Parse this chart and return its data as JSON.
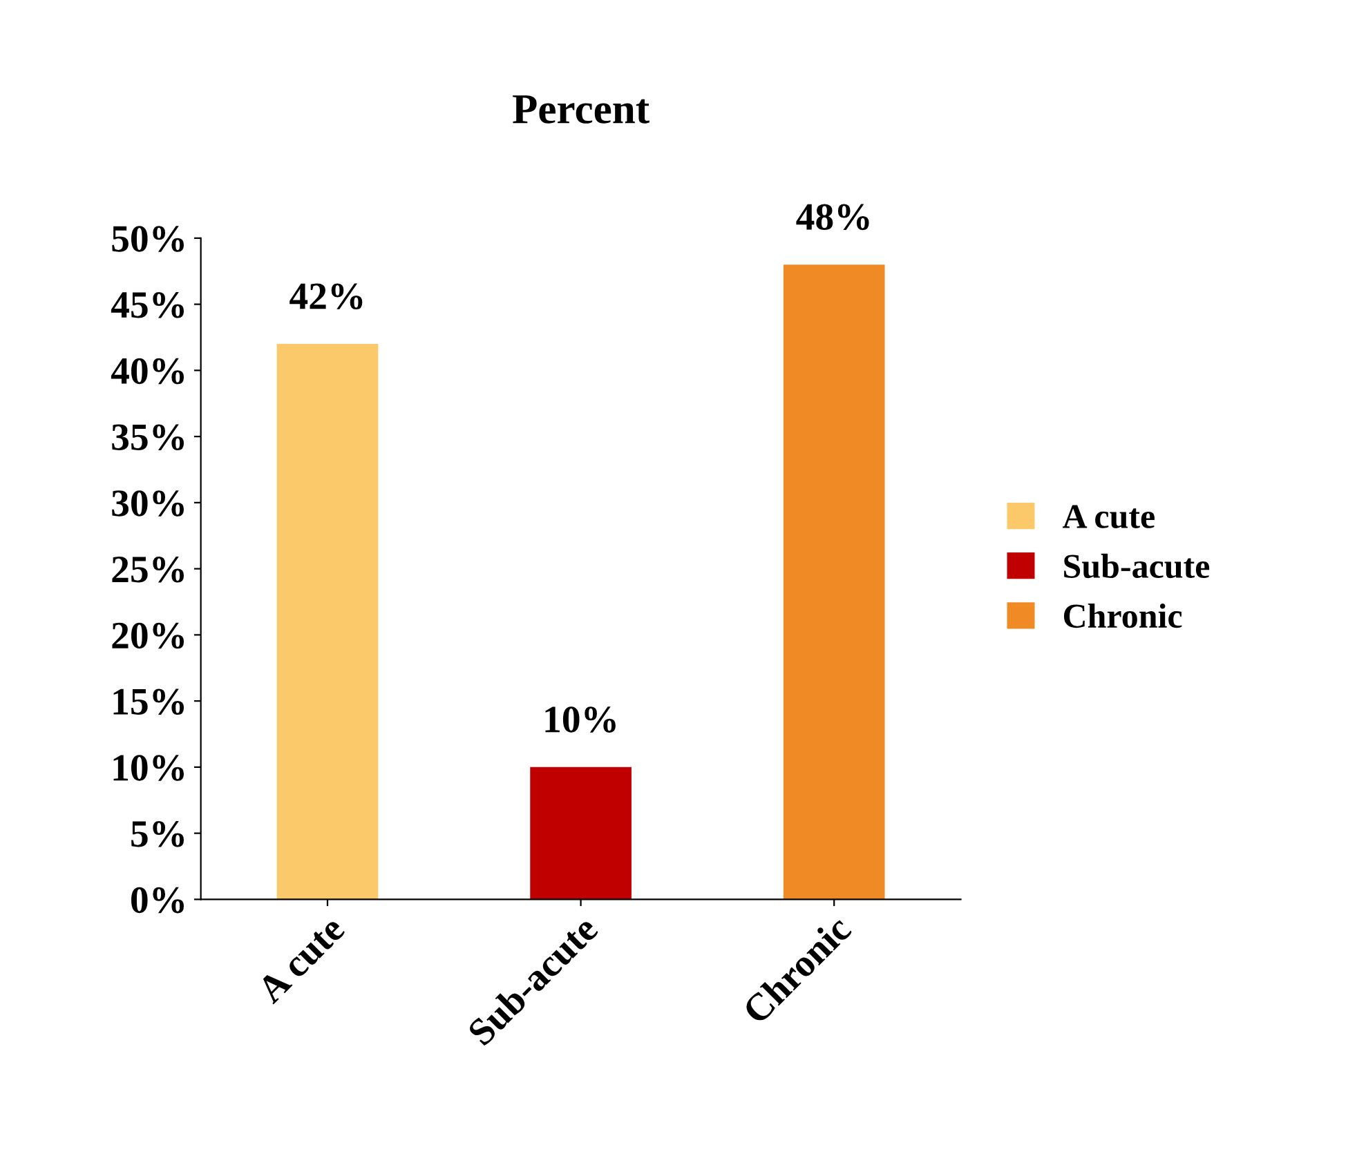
{
  "chart_data": {
    "type": "bar",
    "title": "Percent",
    "categories": [
      "A cute",
      "Sub-acute",
      "Chronic"
    ],
    "series": [
      {
        "name": "A cute",
        "color": "#fcc96a",
        "values": [
          42,
          null,
          null
        ],
        "value_labels": [
          "42%",
          null,
          null
        ]
      },
      {
        "name": "Sub-acute",
        "color": "#c00000",
        "values": [
          null,
          10,
          null
        ],
        "value_labels": [
          null,
          "10%",
          null
        ]
      },
      {
        "name": "Chronic",
        "color": "#f08a24",
        "values": [
          null,
          null,
          48
        ],
        "value_labels": [
          null,
          null,
          "48%"
        ]
      }
    ],
    "ylim": [
      0,
      50
    ],
    "yticks": [
      {
        "value": 0,
        "label": "0%"
      },
      {
        "value": 5,
        "label": "5%"
      },
      {
        "value": 10,
        "label": "10%"
      },
      {
        "value": 15,
        "label": "15%"
      },
      {
        "value": 20,
        "label": "20%"
      },
      {
        "value": 25,
        "label": "25%"
      },
      {
        "value": 30,
        "label": "30%"
      },
      {
        "value": 35,
        "label": "35%"
      },
      {
        "value": 40,
        "label": "40%"
      },
      {
        "value": 45,
        "label": "45%"
      },
      {
        "value": 50,
        "label": "50%"
      }
    ],
    "grid": false,
    "legend": "right"
  }
}
